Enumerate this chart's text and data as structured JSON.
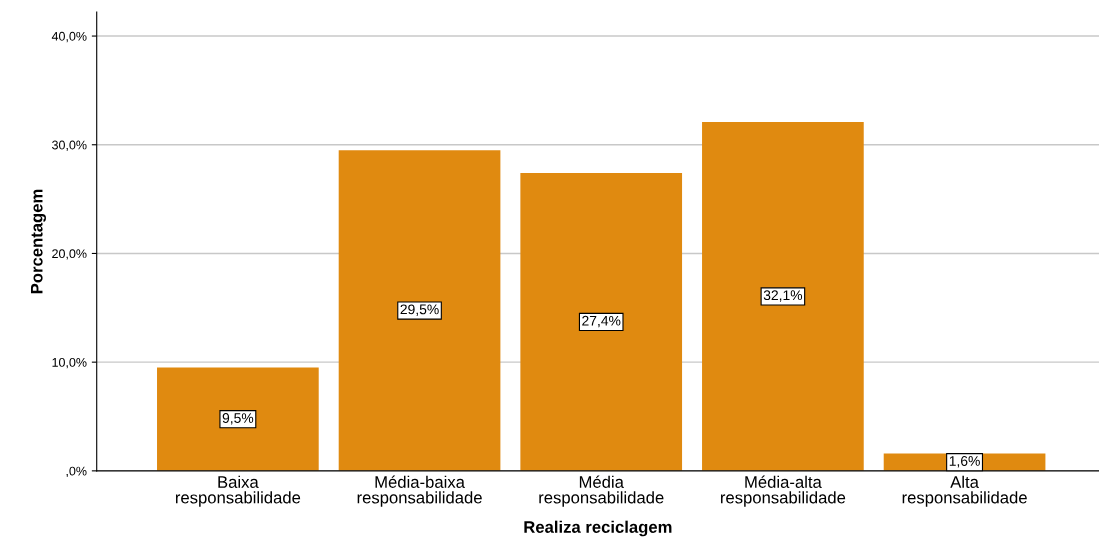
{
  "chart_data": {
    "type": "bar",
    "xlabel": "Realiza reciclagem",
    "ylabel": "Porcentagem",
    "categories": [
      "Baixa\nresponsabilidade",
      "Média-baixa\nresponsabilidade",
      "Média\nresponsabilidade",
      "Média-alta\nresponsabilidade",
      "Alta\nresponsabilidade"
    ],
    "values": [
      9.5,
      29.5,
      27.4,
      32.1,
      1.6
    ],
    "value_labels": [
      "9,5%",
      "29,5%",
      "27,4%",
      "32,1%",
      "1,6%"
    ],
    "color": "#e08a10",
    "ylim": [
      0,
      42.2
    ],
    "yticks": [
      {
        "value": 0,
        "label": ",0%"
      },
      {
        "value": 10,
        "label": "10,0%"
      },
      {
        "value": 20,
        "label": "20,0%"
      },
      {
        "value": 30,
        "label": "30,0%"
      },
      {
        "value": 40,
        "label": "40,0%"
      }
    ],
    "grid": "y"
  }
}
